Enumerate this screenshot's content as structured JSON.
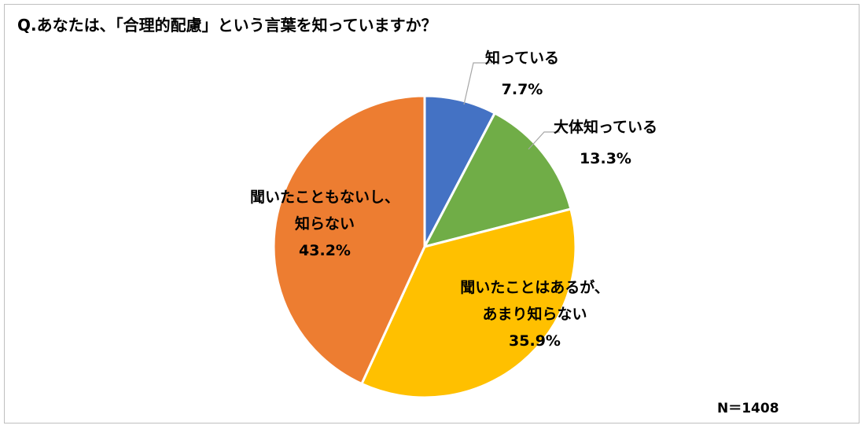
{
  "chart_data": {
    "type": "pie",
    "title": "Q.あなたは、「合理的配慮」という言葉を知っていますか？",
    "slices": [
      {
        "label_lines": [
          "知っている"
        ],
        "value": 7.7,
        "value_text": "7.7%",
        "color": "#4472c4"
      },
      {
        "label_lines": [
          "大体知っている"
        ],
        "value": 13.3,
        "value_text": "13.3%",
        "color": "#70ad47"
      },
      {
        "label_lines": [
          "聞いたことはあるが、",
          "あまり知らない"
        ],
        "value": 35.9,
        "value_text": "35.9%",
        "color": "#ffc000"
      },
      {
        "label_lines": [
          "聞いたこともないし、",
          "知らない"
        ],
        "value": 43.2,
        "value_text": "43.2%",
        "color": "#ed7d31"
      }
    ],
    "start": "12 o'clock",
    "direction": "clockwise",
    "note": "N＝1408"
  }
}
